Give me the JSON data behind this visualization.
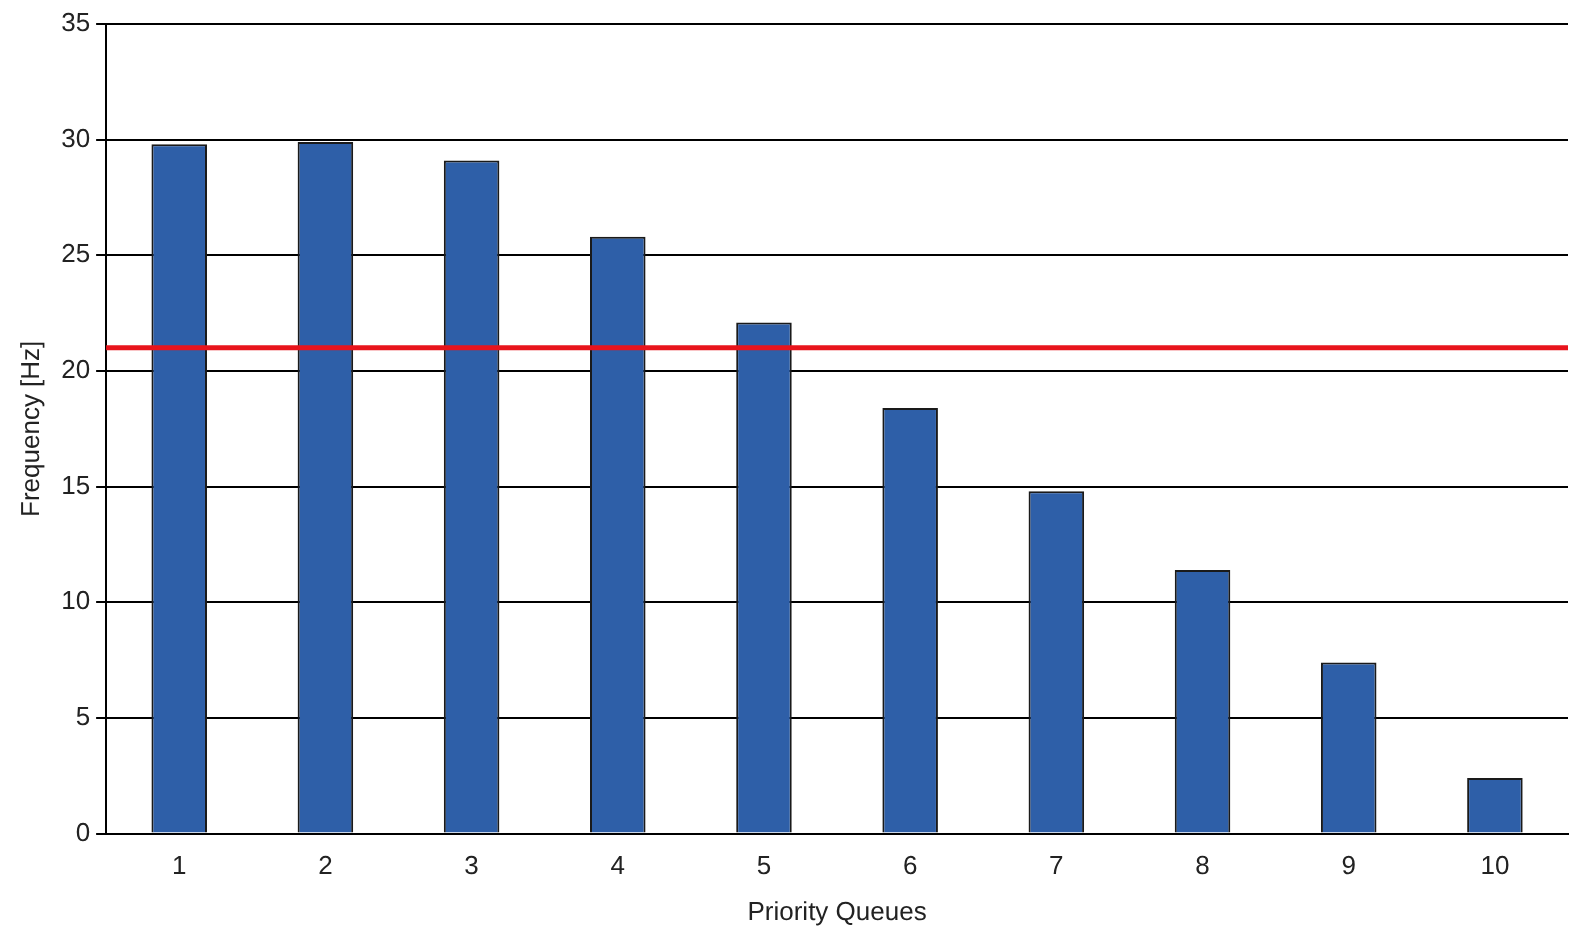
{
  "chart_data": {
    "type": "bar",
    "xlabel": "Priority Queues",
    "ylabel": "Frequency [Hz]",
    "categories": [
      "1",
      "2",
      "3",
      "4",
      "5",
      "6",
      "7",
      "8",
      "9",
      "10"
    ],
    "values": [
      29.8,
      29.9,
      29.1,
      25.8,
      22.1,
      18.4,
      14.8,
      11.4,
      7.4,
      2.4
    ],
    "color": "#2e5fa8",
    "ylim": [
      0,
      35
    ],
    "yticks": [
      0,
      5,
      10,
      15,
      20,
      25,
      30,
      35
    ],
    "grid": "y",
    "ref_lines": [
      {
        "axis": "y",
        "value": 21,
        "color": "#e8141c"
      }
    ]
  }
}
